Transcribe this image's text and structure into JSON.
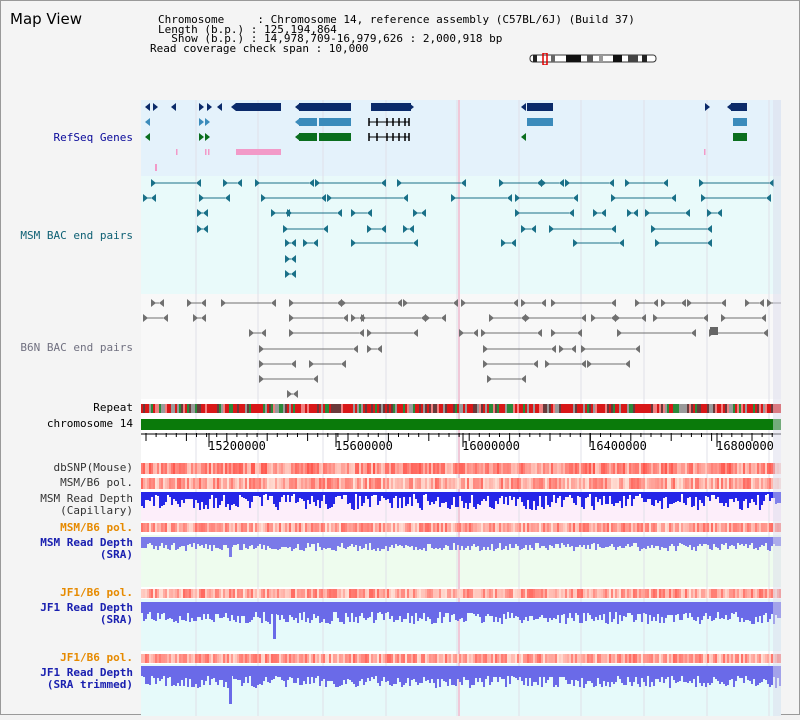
{
  "page": {
    "title": "Map View"
  },
  "info": {
    "chromosome_label": "Chromosome     : Chromosome 14, reference assembly (C57BL/6J) (Build 37)",
    "length_label": "Length (b.p.) : 125,194,864",
    "show_label": "  Show (b.p.) : 14,978,709-16,979,626 : 2,000,918 bp",
    "span_label": "Read coverage check span : 10,000"
  },
  "tracks": {
    "refseq": "RefSeq Genes",
    "msm_bac": "MSM BAC end pairs",
    "b6n_bac": "B6N BAC end pairs",
    "repeat": "Repeat",
    "chromosome": "chromosome 14",
    "dbsnp": "dbSNP(Mouse)",
    "msm_b6_pol_1": "MSM/B6 pol.",
    "msm_read_depth_cap": "MSM Read Depth\n(Capillary)",
    "msm_b6_pol_2": "MSM/B6 pol.",
    "msm_read_depth_sra": "MSM Read Depth\n(SRA)",
    "jf1_b6_pol_1": "JF1/B6 pol.",
    "jf1_read_depth_sra": "JF1 Read Depth\n(SRA)",
    "jf1_b6_pol_2": "JF1/B6 pol.",
    "jf1_read_depth_trim": "JF1 Read Depth\n(SRA trimmed)"
  },
  "axis": {
    "ticks": [
      "15200000",
      "15600000",
      "16000000",
      "16400000",
      "16800000"
    ]
  },
  "colors": {
    "refseq_bg": "#e4f2fb",
    "bac_bg": "#e9fafa",
    "b6n_bg": "#f8f8f8",
    "gene_dark": "#0a2a6a",
    "gene_mid": "#3b8bbb",
    "gene_green": "#0a6e1e",
    "chromosome_bar": "#0a7a0a",
    "depth_blue": "#3a3af0",
    "pol_red": "#ff2020"
  }
}
